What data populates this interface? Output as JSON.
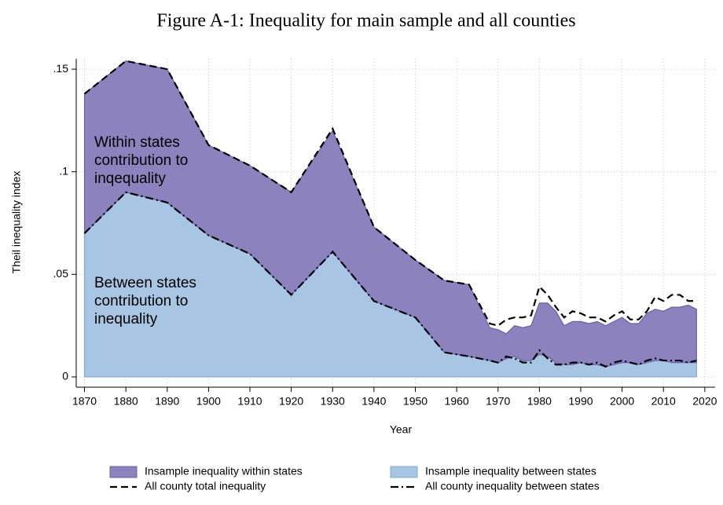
{
  "chart_data": {
    "type": "area",
    "title": "Figure A-1: Inequality for main sample and all counties",
    "x_label": "Year",
    "y_label": "Theil inequality index",
    "x": [
      1870,
      1880,
      1890,
      1900,
      1910,
      1920,
      1930,
      1940,
      1950,
      1957,
      1963,
      1968,
      1970,
      1972,
      1974,
      1976,
      1978,
      1980,
      1982,
      1984,
      1986,
      1988,
      1990,
      1992,
      1994,
      1996,
      1998,
      2000,
      2002,
      2004,
      2006,
      2008,
      2010,
      2012,
      2014,
      2016,
      2018
    ],
    "xlim": [
      1868,
      2022.5
    ],
    "xticks": [
      1870,
      1880,
      1890,
      1900,
      1910,
      1920,
      1930,
      1940,
      1950,
      1960,
      1970,
      1980,
      1990,
      2000,
      2010,
      2020
    ],
    "ylim": [
      -0.005,
      0.155
    ],
    "yticks": [
      0,
      {
        "value": 0.05,
        "label": ".05"
      },
      {
        "value": 0.1,
        "label": ".1"
      },
      {
        "value": 0.15,
        "label": ".15"
      }
    ],
    "grid": true,
    "legend": "bottom",
    "series": [
      {
        "name": "Insample inequality within states",
        "style": "area",
        "color": "#8c82bd",
        "values": [
          0.068,
          0.064,
          0.065,
          0.044,
          0.043,
          0.05,
          0.059,
          0.036,
          0.028,
          0.035,
          0.035,
          0.016,
          0.016,
          0.012,
          0.015,
          0.016,
          0.017,
          0.025,
          0.026,
          0.025,
          0.019,
          0.021,
          0.02,
          0.02,
          0.021,
          0.02,
          0.021,
          0.022,
          0.019,
          0.02,
          0.024,
          0.025,
          0.024,
          0.027,
          0.027,
          0.028,
          0.026
        ]
      },
      {
        "name": "Insample inequality between states",
        "style": "area",
        "color": "#a8c6e3",
        "values": [
          0.07,
          0.09,
          0.085,
          0.069,
          0.06,
          0.04,
          0.061,
          0.037,
          0.029,
          0.012,
          0.01,
          0.008,
          0.007,
          0.009,
          0.01,
          0.008,
          0.008,
          0.011,
          0.01,
          0.007,
          0.006,
          0.006,
          0.007,
          0.006,
          0.006,
          0.005,
          0.006,
          0.007,
          0.007,
          0.006,
          0.007,
          0.008,
          0.008,
          0.007,
          0.007,
          0.007,
          0.007
        ]
      },
      {
        "name": "All county total inequality",
        "style": "dash",
        "color": "#000000",
        "values": [
          0.138,
          0.154,
          0.15,
          0.113,
          0.103,
          0.09,
          0.121,
          0.073,
          0.057,
          0.047,
          0.045,
          0.026,
          0.025,
          0.028,
          0.029,
          0.029,
          0.03,
          0.044,
          0.04,
          0.034,
          0.029,
          0.032,
          0.031,
          0.029,
          0.029,
          0.027,
          0.03,
          0.032,
          0.028,
          0.028,
          0.032,
          0.039,
          0.037,
          0.04,
          0.04,
          0.037,
          0.037
        ]
      },
      {
        "name": "All county inequality between states",
        "style": "dashdot",
        "color": "#000000",
        "values": [
          0.07,
          0.09,
          0.085,
          0.069,
          0.06,
          0.04,
          0.061,
          0.037,
          0.029,
          0.012,
          0.01,
          0.008,
          0.007,
          0.01,
          0.009,
          0.007,
          0.007,
          0.013,
          0.009,
          0.006,
          0.006,
          0.007,
          0.007,
          0.006,
          0.007,
          0.005,
          0.007,
          0.008,
          0.007,
          0.006,
          0.008,
          0.009,
          0.008,
          0.008,
          0.008,
          0.007,
          0.008
        ]
      }
    ],
    "annotations": [
      {
        "lines": [
          "Within states",
          "contribution to",
          "inqequality"
        ]
      },
      {
        "lines": [
          "Between states",
          "contribution to",
          "inequality"
        ]
      }
    ]
  }
}
